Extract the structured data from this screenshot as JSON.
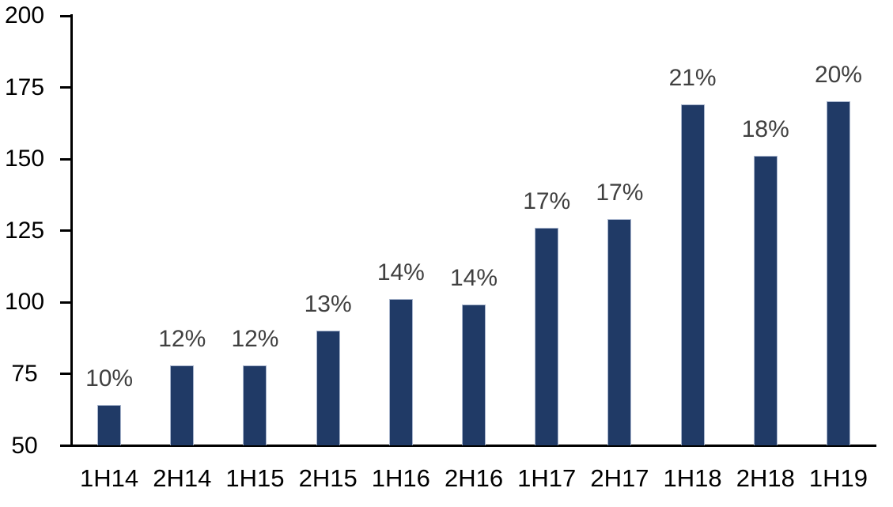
{
  "chart_data": {
    "type": "bar",
    "categories": [
      "1H14",
      "2H14",
      "1H15",
      "2H15",
      "1H16",
      "2H16",
      "1H17",
      "2H17",
      "1H18",
      "2H18",
      "1H19"
    ],
    "values": [
      64,
      78,
      78,
      90,
      101,
      99,
      126,
      129,
      169,
      151,
      170
    ],
    "bar_labels": [
      "10%",
      "12%",
      "12%",
      "13%",
      "14%",
      "14%",
      "17%",
      "17%",
      "21%",
      "18%",
      "20%"
    ],
    "title": "",
    "xlabel": "",
    "ylabel": "",
    "ylim": [
      50,
      200
    ],
    "yticks": [
      50,
      75,
      100,
      125,
      150,
      175,
      200
    ],
    "grid": false,
    "legend": "none",
    "colors": {
      "bar_fill": "#203a66",
      "bar_border": "#a8b5cd",
      "data_label": "#404040",
      "axis": "#000000",
      "background": "#ffffff"
    }
  }
}
